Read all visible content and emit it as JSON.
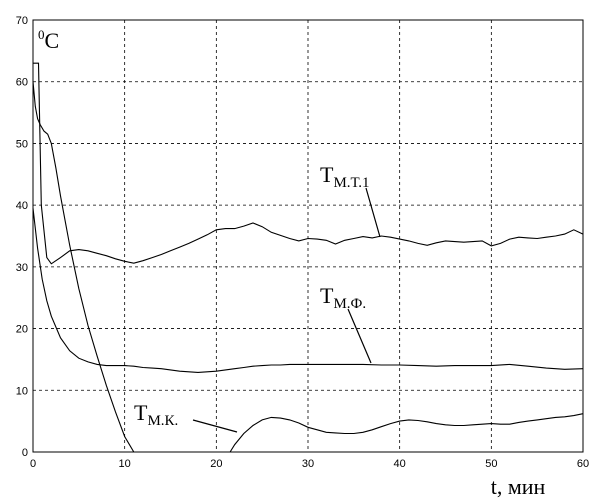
{
  "chart_data": {
    "type": "line",
    "ylabel_sup": "0",
    "ylabel_main": "C",
    "xlabel": "t, мин",
    "xlim": [
      0,
      60
    ],
    "ylim": [
      0,
      70
    ],
    "xticks": [
      0,
      10,
      20,
      30,
      40,
      50,
      60
    ],
    "yticks": [
      0,
      10,
      20,
      30,
      40,
      50,
      60,
      70
    ],
    "grid": true,
    "series": [
      {
        "name": "Tм.т.1",
        "x": [
          0,
          0.3,
          0.6,
          0.9,
          1.5,
          2,
          3,
          4,
          5,
          6,
          7,
          8,
          9,
          10,
          11,
          12,
          13,
          14,
          15,
          16,
          17,
          18,
          19,
          20,
          21,
          22,
          23,
          24,
          25,
          26,
          27,
          28,
          29,
          30,
          31,
          32,
          33,
          34,
          35,
          36,
          37,
          38,
          39,
          40,
          41,
          42,
          43,
          44,
          45,
          46,
          47,
          48,
          49,
          50,
          51,
          52,
          53,
          54,
          55,
          56,
          57,
          58,
          59,
          60
        ],
        "y": [
          63,
          63,
          63,
          40,
          31.5,
          30.5,
          31.5,
          32.6,
          32.8,
          32.6,
          32.2,
          31.8,
          31.3,
          30.9,
          30.6,
          31.0,
          31.5,
          32.0,
          32.6,
          33.2,
          33.8,
          34.5,
          35.2,
          36.0,
          36.2,
          36.2,
          36.6,
          37.1,
          36.5,
          35.6,
          35.1,
          34.6,
          34.2,
          34.6,
          34.5,
          34.3,
          33.7,
          34.3,
          34.6,
          34.9,
          34.7,
          35.0,
          34.8,
          34.5,
          34.2,
          33.8,
          33.5,
          33.9,
          34.2,
          34.1,
          34.0,
          34.1,
          34.2,
          33.4,
          33.8,
          34.5,
          34.8,
          34.7,
          34.6,
          34.8,
          35.0,
          35.3,
          36.0,
          35.3
        ]
      },
      {
        "name": "Tм.ф.",
        "x": [
          0,
          0.5,
          1,
          1.5,
          2,
          3,
          4,
          5,
          6,
          7,
          8,
          9,
          10,
          11,
          12,
          13,
          14,
          15,
          16,
          17,
          18,
          19,
          20,
          21,
          22,
          23,
          24,
          25,
          26,
          27,
          28,
          29,
          30,
          32,
          34,
          36,
          38,
          40,
          42,
          44,
          46,
          48,
          50,
          52,
          54,
          56,
          58,
          60
        ],
        "y": [
          39.5,
          33,
          28,
          24.5,
          22,
          18.5,
          16.4,
          15.2,
          14.6,
          14.2,
          14.0,
          14.0,
          14.0,
          13.9,
          13.7,
          13.6,
          13.5,
          13.3,
          13.1,
          13.0,
          12.9,
          13.0,
          13.1,
          13.3,
          13.5,
          13.7,
          13.9,
          14.0,
          14.1,
          14.1,
          14.2,
          14.2,
          14.2,
          14.2,
          14.2,
          14.2,
          14.1,
          14.1,
          14.0,
          13.9,
          14.0,
          14.0,
          14.0,
          14.2,
          13.9,
          13.6,
          13.4,
          13.5
        ]
      },
      {
        "name": "Tм.к.",
        "x": [
          0,
          0.25,
          0.5,
          0.8,
          1.2,
          1.6,
          2,
          2.5,
          3,
          3.5,
          4,
          5,
          6,
          7,
          8,
          9,
          10,
          11,
          12,
          21.5,
          22,
          23,
          24,
          25,
          26,
          27,
          28,
          29,
          30,
          31,
          32,
          33,
          34,
          35,
          36,
          37,
          38,
          39,
          40,
          41,
          42,
          43,
          44,
          45,
          46,
          47,
          48,
          49,
          50,
          51,
          52,
          53,
          54,
          55,
          56,
          57,
          58,
          59,
          60
        ],
        "y": [
          60,
          56,
          54,
          53,
          52,
          51.5,
          50,
          46,
          41.5,
          37.5,
          33.5,
          26.5,
          20.5,
          15.5,
          10.8,
          6.5,
          2.5,
          0,
          null,
          0,
          1.2,
          3.0,
          4.3,
          5.2,
          5.6,
          5.5,
          5.2,
          4.7,
          4.0,
          3.6,
          3.2,
          3.1,
          3.0,
          3.0,
          3.2,
          3.6,
          4.1,
          4.6,
          5.0,
          5.2,
          5.1,
          4.9,
          4.6,
          4.4,
          4.3,
          4.3,
          4.4,
          4.5,
          4.6,
          4.5,
          4.5,
          4.8,
          5.0,
          5.2,
          5.4,
          5.6,
          5.7,
          5.9,
          6.2
        ]
      }
    ],
    "annotations": [
      {
        "main": "T",
        "sub": "М.Т.1",
        "series": 0
      },
      {
        "main": "T",
        "sub": "М.Ф.",
        "series": 1
      },
      {
        "main": "T",
        "sub": "М.К.",
        "series": 2
      }
    ]
  }
}
